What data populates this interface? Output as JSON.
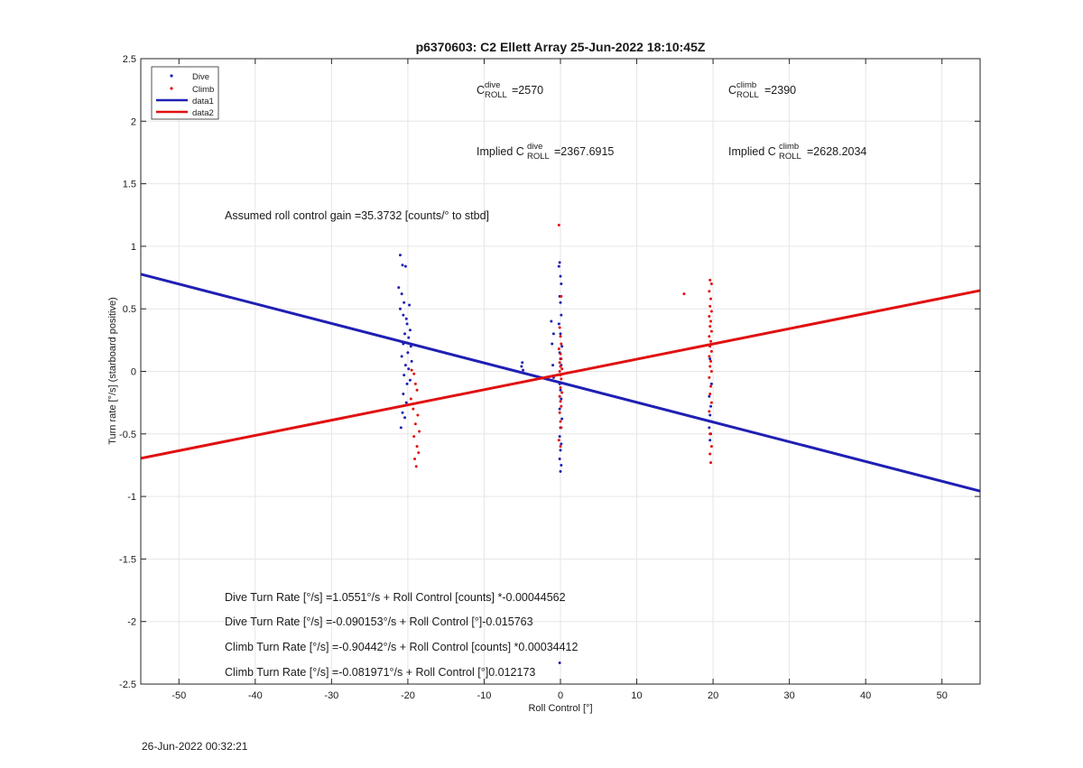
{
  "chart_data": {
    "type": "scatter",
    "title": "p6370603: C2 Ellett Array 25-Jun-2022 18:10:45Z",
    "xlabel": "Roll Control [°]",
    "ylabel": "Turn rate [°/s] (starboard positive)",
    "xlim": [
      -55,
      55
    ],
    "ylim": [
      -2.5,
      2.5
    ],
    "xticks": [
      -50,
      -40,
      -30,
      -20,
      -10,
      0,
      10,
      20,
      30,
      40,
      50
    ],
    "yticks": [
      -2.5,
      -2,
      -1.5,
      -1,
      -0.5,
      0,
      0.5,
      1,
      1.5,
      2,
      2.5
    ],
    "xtick_labels": [
      "-50",
      "-40",
      "-30",
      "-20",
      "-10",
      "0",
      "10",
      "20",
      "30",
      "40",
      "50"
    ],
    "ytick_labels": [
      "-2.5",
      "-2",
      "-1.5",
      "-1",
      "-0.5",
      "0",
      "0.5",
      "1",
      "1.5",
      "2",
      "2.5"
    ],
    "grid": true,
    "legend_position": "top-left",
    "legend": [
      {
        "label": "Dive",
        "style": "dot",
        "color": "#1f1fb4"
      },
      {
        "label": "Climb",
        "style": "dot",
        "color": "#e01010"
      },
      {
        "label": "data1",
        "style": "line",
        "color": "#1f1fb4"
      },
      {
        "label": "data2",
        "style": "line",
        "color": "#e01010"
      }
    ],
    "colors": {
      "dive": "#1f1fb4",
      "climb": "#e01010",
      "grid": "#e6e6e6",
      "axis": "#262626"
    },
    "series": [
      {
        "name": "Dive",
        "type": "scatter",
        "color": "#1f1fb4",
        "points": [
          [
            -21,
            0.93
          ],
          [
            -20.7,
            0.85
          ],
          [
            -20.3,
            0.84
          ],
          [
            -21.2,
            0.67
          ],
          [
            -20.8,
            0.62
          ],
          [
            -20.5,
            0.55
          ],
          [
            -21,
            0.5
          ],
          [
            -20.6,
            0.45
          ],
          [
            -20.2,
            0.42
          ],
          [
            -19.8,
            0.53
          ],
          [
            -20.1,
            0.38
          ],
          [
            -19.7,
            0.33
          ],
          [
            -20.4,
            0.3
          ],
          [
            -19.9,
            0.27
          ],
          [
            -20.6,
            0.22
          ],
          [
            -19.6,
            0.2
          ],
          [
            -20,
            0.15
          ],
          [
            -20.8,
            0.12
          ],
          [
            -19.5,
            0.08
          ],
          [
            -20.3,
            0.05
          ],
          [
            -19.9,
            0.02
          ],
          [
            -20.5,
            -0.03
          ],
          [
            -19.7,
            -0.07
          ],
          [
            -20.1,
            -0.1
          ],
          [
            -20.6,
            -0.18
          ],
          [
            -20.2,
            -0.25
          ],
          [
            -20.7,
            -0.33
          ],
          [
            -20.4,
            -0.37
          ],
          [
            -20.9,
            -0.45
          ],
          [
            -5,
            0.07
          ],
          [
            -5.1,
            0.04
          ],
          [
            -4.9,
            0.01
          ],
          [
            -1.2,
            0.4
          ],
          [
            -0.9,
            0.3
          ],
          [
            -1.1,
            0.22
          ],
          [
            -1,
            0.05
          ],
          [
            -0.9,
            -0.05
          ],
          [
            -0.1,
            0.87
          ],
          [
            -0.2,
            0.84
          ],
          [
            0,
            0.76
          ],
          [
            0.1,
            0.7
          ],
          [
            -0.1,
            0.6
          ],
          [
            0,
            0.55
          ],
          [
            0.1,
            0.45
          ],
          [
            -0.2,
            0.38
          ],
          [
            0,
            0.3
          ],
          [
            0.2,
            0.2
          ],
          [
            -0.1,
            0.15
          ],
          [
            0,
            0.1
          ],
          [
            0.1,
            0.05
          ],
          [
            -0.1,
            -0.1
          ],
          [
            0,
            -0.15
          ],
          [
            0.1,
            -0.22
          ],
          [
            -0.1,
            -0.3
          ],
          [
            0.2,
            -0.38
          ],
          [
            0,
            -0.45
          ],
          [
            -0.1,
            -0.52
          ],
          [
            0.1,
            -0.58
          ],
          [
            0,
            -0.63
          ],
          [
            -0.1,
            -0.7
          ],
          [
            0.1,
            -0.75
          ],
          [
            0,
            -0.8
          ],
          [
            -0.1,
            -2.33
          ],
          [
            19.6,
            0.1
          ],
          [
            19.8,
            -0.1
          ],
          [
            19.5,
            -0.2
          ],
          [
            19.7,
            -0.28
          ],
          [
            19.6,
            -0.35
          ],
          [
            19.8,
            -0.4
          ],
          [
            19.5,
            -0.45
          ],
          [
            19.7,
            -0.5
          ],
          [
            19.6,
            -0.55
          ]
        ]
      },
      {
        "name": "Climb",
        "type": "scatter",
        "color": "#e01010",
        "points": [
          [
            -19.5,
            0.01
          ],
          [
            -19.2,
            -0.02
          ],
          [
            -19,
            -0.1
          ],
          [
            -18.8,
            -0.15
          ],
          [
            -19.6,
            -0.22
          ],
          [
            -19.3,
            -0.3
          ],
          [
            -18.7,
            -0.35
          ],
          [
            -19,
            -0.42
          ],
          [
            -18.5,
            -0.48
          ],
          [
            -19.2,
            -0.52
          ],
          [
            -18.8,
            -0.6
          ],
          [
            -18.6,
            -0.65
          ],
          [
            -19.1,
            -0.7
          ],
          [
            -18.9,
            -0.76
          ],
          [
            -0.2,
            1.17
          ],
          [
            0.1,
            0.6
          ],
          [
            -0.1,
            0.35
          ],
          [
            0,
            0.28
          ],
          [
            0.1,
            0.22
          ],
          [
            -0.2,
            0.18
          ],
          [
            0,
            0.14
          ],
          [
            0.1,
            0.1
          ],
          [
            -0.1,
            0.07
          ],
          [
            0,
            0.04
          ],
          [
            0.2,
            0.02
          ],
          [
            -0.1,
            0
          ],
          [
            0,
            -0.03
          ],
          [
            0.1,
            -0.06
          ],
          [
            -0.1,
            -0.09
          ],
          [
            0,
            -0.13
          ],
          [
            0.2,
            -0.17
          ],
          [
            -0.1,
            -0.2
          ],
          [
            0,
            -0.24
          ],
          [
            0.1,
            -0.28
          ],
          [
            -0.1,
            -0.33
          ],
          [
            0,
            -0.4
          ],
          [
            0.1,
            -0.45
          ],
          [
            -0.2,
            -0.55
          ],
          [
            0,
            -0.6
          ],
          [
            16.2,
            0.62
          ],
          [
            19.6,
            0.73
          ],
          [
            19.8,
            0.7
          ],
          [
            19.5,
            0.64
          ],
          [
            19.7,
            0.58
          ],
          [
            19.6,
            0.52
          ],
          [
            19.8,
            0.48
          ],
          [
            19.5,
            0.44
          ],
          [
            19.7,
            0.4
          ],
          [
            19.6,
            0.36
          ],
          [
            19.8,
            0.32
          ],
          [
            19.5,
            0.28
          ],
          [
            19.7,
            0.24
          ],
          [
            19.6,
            0.2
          ],
          [
            19.8,
            0.16
          ],
          [
            19.5,
            0.12
          ],
          [
            19.7,
            0.08
          ],
          [
            19.6,
            0.04
          ],
          [
            19.8,
            0
          ],
          [
            19.5,
            -0.05
          ],
          [
            19.7,
            -0.12
          ],
          [
            19.6,
            -0.18
          ],
          [
            19.8,
            -0.25
          ],
          [
            19.5,
            -0.32
          ],
          [
            19.7,
            -0.4
          ],
          [
            19.6,
            -0.5
          ],
          [
            19.8,
            -0.6
          ],
          [
            19.6,
            -0.66
          ],
          [
            19.7,
            -0.73
          ]
        ]
      },
      {
        "name": "data1",
        "type": "line",
        "color": "#1f1fb4",
        "points": [
          [
            -55,
            0.777
          ],
          [
            55,
            -0.957
          ]
        ]
      },
      {
        "name": "data2",
        "type": "line",
        "color": "#e01010",
        "points": [
          [
            -55,
            -0.695
          ],
          [
            55,
            0.646
          ]
        ]
      }
    ],
    "annotations": {
      "c_dive": {
        "base": "C",
        "sup": "dive",
        "sub": "ROLL",
        "value": "=2570"
      },
      "c_climb": {
        "base": "C",
        "sup": "climb",
        "sub": "ROLL",
        "value": "=2390"
      },
      "implied_dive": {
        "prefix": "Implied C",
        "sup": "dive",
        "sub": "ROLL",
        "value": "=2367.6915"
      },
      "implied_climb": {
        "prefix": "Implied C",
        "sup": "climb",
        "sub": "ROLL",
        "value": "=2628.2034"
      },
      "gain": "Assumed roll control gain =35.3732 [counts/° to stbd]",
      "eq1": "Dive Turn Rate [°/s] =1.0551°/s + Roll Control [counts] *-0.00044562",
      "eq2": "Dive Turn Rate [°/s] =-0.090153°/s + Roll Control [°]-0.015763",
      "eq3": "Climb Turn Rate [°/s] =-0.90442°/s + Roll Control [counts] *0.00034412",
      "eq4": "Climb Turn Rate [°/s] =-0.081971°/s + Roll Control [°]0.012173"
    }
  },
  "footer_timestamp": "26-Jun-2022 00:32:21"
}
